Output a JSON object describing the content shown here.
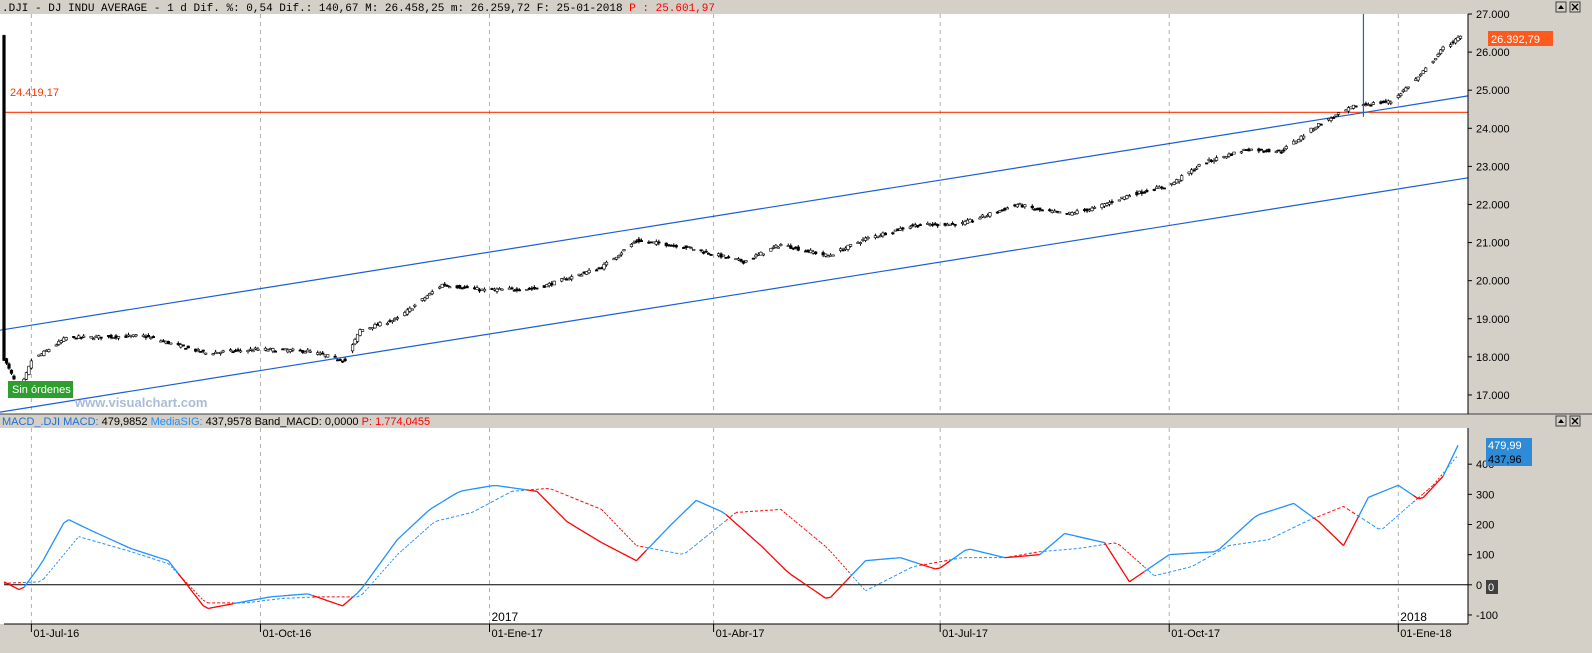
{
  "header": {
    "symbol": ".DJI",
    "name": "DJ INDU AVERAGE",
    "timeframe": "1 d",
    "stats_text": "Dif. %: 0,54 Dif.: 140,67 M: 26.458,25 m: 26.259,72 F: 25-01-2018",
    "p_label": "P",
    "p_value": "25.601,97"
  },
  "colors": {
    "background": "#ffffff",
    "panel_bg": "#d4d0c8",
    "grid": "#b0b0b0",
    "channel": "#1a5fd6",
    "level": "#ff3300",
    "macd": "#1e90ff",
    "signal_neg": "#ff0000",
    "candle": "#000000",
    "green_tag": "#2e9e2e",
    "last_price_tag": "#ff5a1e",
    "macd_tag": "#2e8bd8"
  },
  "badges": {
    "sin_ordenes": "Sin órdenes",
    "watermark": "www.visualchart.com",
    "level_label": "24.419,17",
    "last_price": "26.392,79"
  },
  "macd_header": {
    "prefix": "MACD_.DJI",
    "macd_label": "MACD:",
    "macd_value": "479,9852",
    "sig_label": "MediaSIG:",
    "sig_value": "437,9578",
    "band_label": "Band_MACD:",
    "band_value": "0,0000",
    "p_label": "P:",
    "p_value": "1.774,0455",
    "macd_tag": "479,99",
    "sig_tag": "437,96",
    "zero_tag": "0"
  },
  "chart_data": [
    {
      "type": "candlestick",
      "ylim": [
        16500,
        27000
      ],
      "yticks": [
        "17.000",
        "18.000",
        "19.000",
        "20.000",
        "21.000",
        "22.000",
        "23.000",
        "24.000",
        "25.000",
        "26.000",
        "27.000"
      ],
      "ytick_values": [
        17000,
        18000,
        19000,
        20000,
        21000,
        22000,
        23000,
        24000,
        25000,
        26000,
        27000
      ],
      "x_range": [
        "2016-06-20",
        "2018-01-29"
      ],
      "level": 24419.17,
      "last_price": 26392.79,
      "channel_upper": {
        "x": [
          "2016-06-20",
          "2018-01-29"
        ],
        "y": [
          18700,
          24850
        ]
      },
      "channel_lower": {
        "x": [
          "2016-06-20",
          "2018-01-29"
        ],
        "y": [
          16550,
          22700
        ]
      },
      "vertical_marker_date": "2017-12-18",
      "price_path": {
        "x": [
          "2016-06-20",
          "2016-06-24",
          "2016-06-27",
          "2016-07-01",
          "2016-07-15",
          "2016-08-15",
          "2016-09-09",
          "2016-09-30",
          "2016-10-20",
          "2016-11-04",
          "2016-11-10",
          "2016-11-25",
          "2016-12-13",
          "2016-12-30",
          "2017-01-20",
          "2017-02-15",
          "2017-03-01",
          "2017-03-20",
          "2017-04-13",
          "2017-04-28",
          "2017-05-17",
          "2017-06-01",
          "2017-06-20",
          "2017-07-10",
          "2017-08-01",
          "2017-08-10",
          "2017-08-21",
          "2017-09-01",
          "2017-09-15",
          "2017-10-01",
          "2017-10-15",
          "2017-11-01",
          "2017-11-15",
          "2017-11-30",
          "2017-12-15",
          "2017-12-29",
          "2018-01-10",
          "2018-01-19",
          "2018-01-26"
        ],
        "y": [
          17950,
          17400,
          17200,
          17900,
          18500,
          18550,
          18100,
          18200,
          18150,
          17900,
          18700,
          19000,
          19900,
          19750,
          19800,
          20350,
          21050,
          20900,
          20500,
          20950,
          20650,
          21100,
          21450,
          21500,
          22000,
          21850,
          21750,
          21900,
          22250,
          22500,
          23100,
          23450,
          23400,
          24100,
          24600,
          24700,
          25400,
          26100,
          26400
        ]
      },
      "xticks": [
        "01-Jul-16",
        "01-Oct-16",
        "01-Ene-17",
        "01-Abr-17",
        "01-Jul-17",
        "01-Oct-17",
        "01-Ene-18"
      ],
      "xtick_dates": [
        "2016-07-01",
        "2016-10-01",
        "2017-01-01",
        "2017-04-01",
        "2017-07-01",
        "2017-10-01",
        "2018-01-01"
      ]
    },
    {
      "type": "line",
      "ylim": [
        -130,
        520
      ],
      "yticks": [
        "-100",
        "0",
        "100",
        "200",
        "300",
        "400"
      ],
      "ytick_values": [
        -100,
        0,
        100,
        200,
        300,
        400
      ],
      "year_labels": [
        "2017",
        "2018"
      ],
      "year_dates": [
        "2017-01-01",
        "2018-01-01"
      ],
      "series": [
        {
          "name": "MACD",
          "x": [
            "2016-06-20",
            "2016-06-27",
            "2016-07-05",
            "2016-07-15",
            "2016-07-25",
            "2016-08-10",
            "2016-08-25",
            "2016-09-09",
            "2016-09-25",
            "2016-10-05",
            "2016-10-20",
            "2016-11-03",
            "2016-11-10",
            "2016-11-25",
            "2016-12-08",
            "2016-12-20",
            "2017-01-03",
            "2017-01-20",
            "2017-02-01",
            "2017-02-15",
            "2017-03-01",
            "2017-03-15",
            "2017-03-25",
            "2017-04-05",
            "2017-04-20",
            "2017-05-01",
            "2017-05-17",
            "2017-06-01",
            "2017-06-15",
            "2017-06-30",
            "2017-07-12",
            "2017-07-27",
            "2017-08-10",
            "2017-08-20",
            "2017-09-05",
            "2017-09-15",
            "2017-10-01",
            "2017-10-20",
            "2017-11-05",
            "2017-11-20",
            "2017-11-30",
            "2017-12-10",
            "2017-12-20",
            "2018-01-01",
            "2018-01-10",
            "2018-01-19",
            "2018-01-26"
          ],
          "y": [
            10,
            -20,
            70,
            220,
            180,
            120,
            80,
            -80,
            -55,
            -40,
            -30,
            -70,
            -20,
            150,
            250,
            310,
            330,
            310,
            210,
            140,
            80,
            200,
            280,
            240,
            130,
            40,
            -50,
            80,
            90,
            50,
            120,
            90,
            100,
            170,
            140,
            10,
            100,
            110,
            230,
            270,
            210,
            130,
            290,
            330,
            280,
            360,
            480
          ]
        },
        {
          "name": "MediaSIG",
          "x": [
            "2016-06-20",
            "2016-07-05",
            "2016-07-20",
            "2016-08-10",
            "2016-08-25",
            "2016-09-09",
            "2016-09-25",
            "2016-10-10",
            "2016-10-25",
            "2016-11-10",
            "2016-11-25",
            "2016-12-10",
            "2016-12-25",
            "2017-01-10",
            "2017-01-25",
            "2017-02-15",
            "2017-03-01",
            "2017-03-20",
            "2017-04-10",
            "2017-04-28",
            "2017-05-17",
            "2017-06-01",
            "2017-06-20",
            "2017-07-10",
            "2017-07-27",
            "2017-08-10",
            "2017-08-25",
            "2017-09-10",
            "2017-09-25",
            "2017-10-10",
            "2017-10-25",
            "2017-11-10",
            "2017-11-25",
            "2017-12-10",
            "2017-12-25",
            "2018-01-05",
            "2018-01-15",
            "2018-01-26"
          ],
          "y": [
            5,
            10,
            160,
            110,
            70,
            -60,
            -60,
            -45,
            -40,
            -40,
            100,
            210,
            240,
            310,
            320,
            250,
            130,
            100,
            240,
            250,
            120,
            -20,
            60,
            90,
            90,
            110,
            120,
            140,
            30,
            60,
            130,
            150,
            210,
            260,
            180,
            260,
            330,
            440
          ]
        }
      ]
    }
  ]
}
